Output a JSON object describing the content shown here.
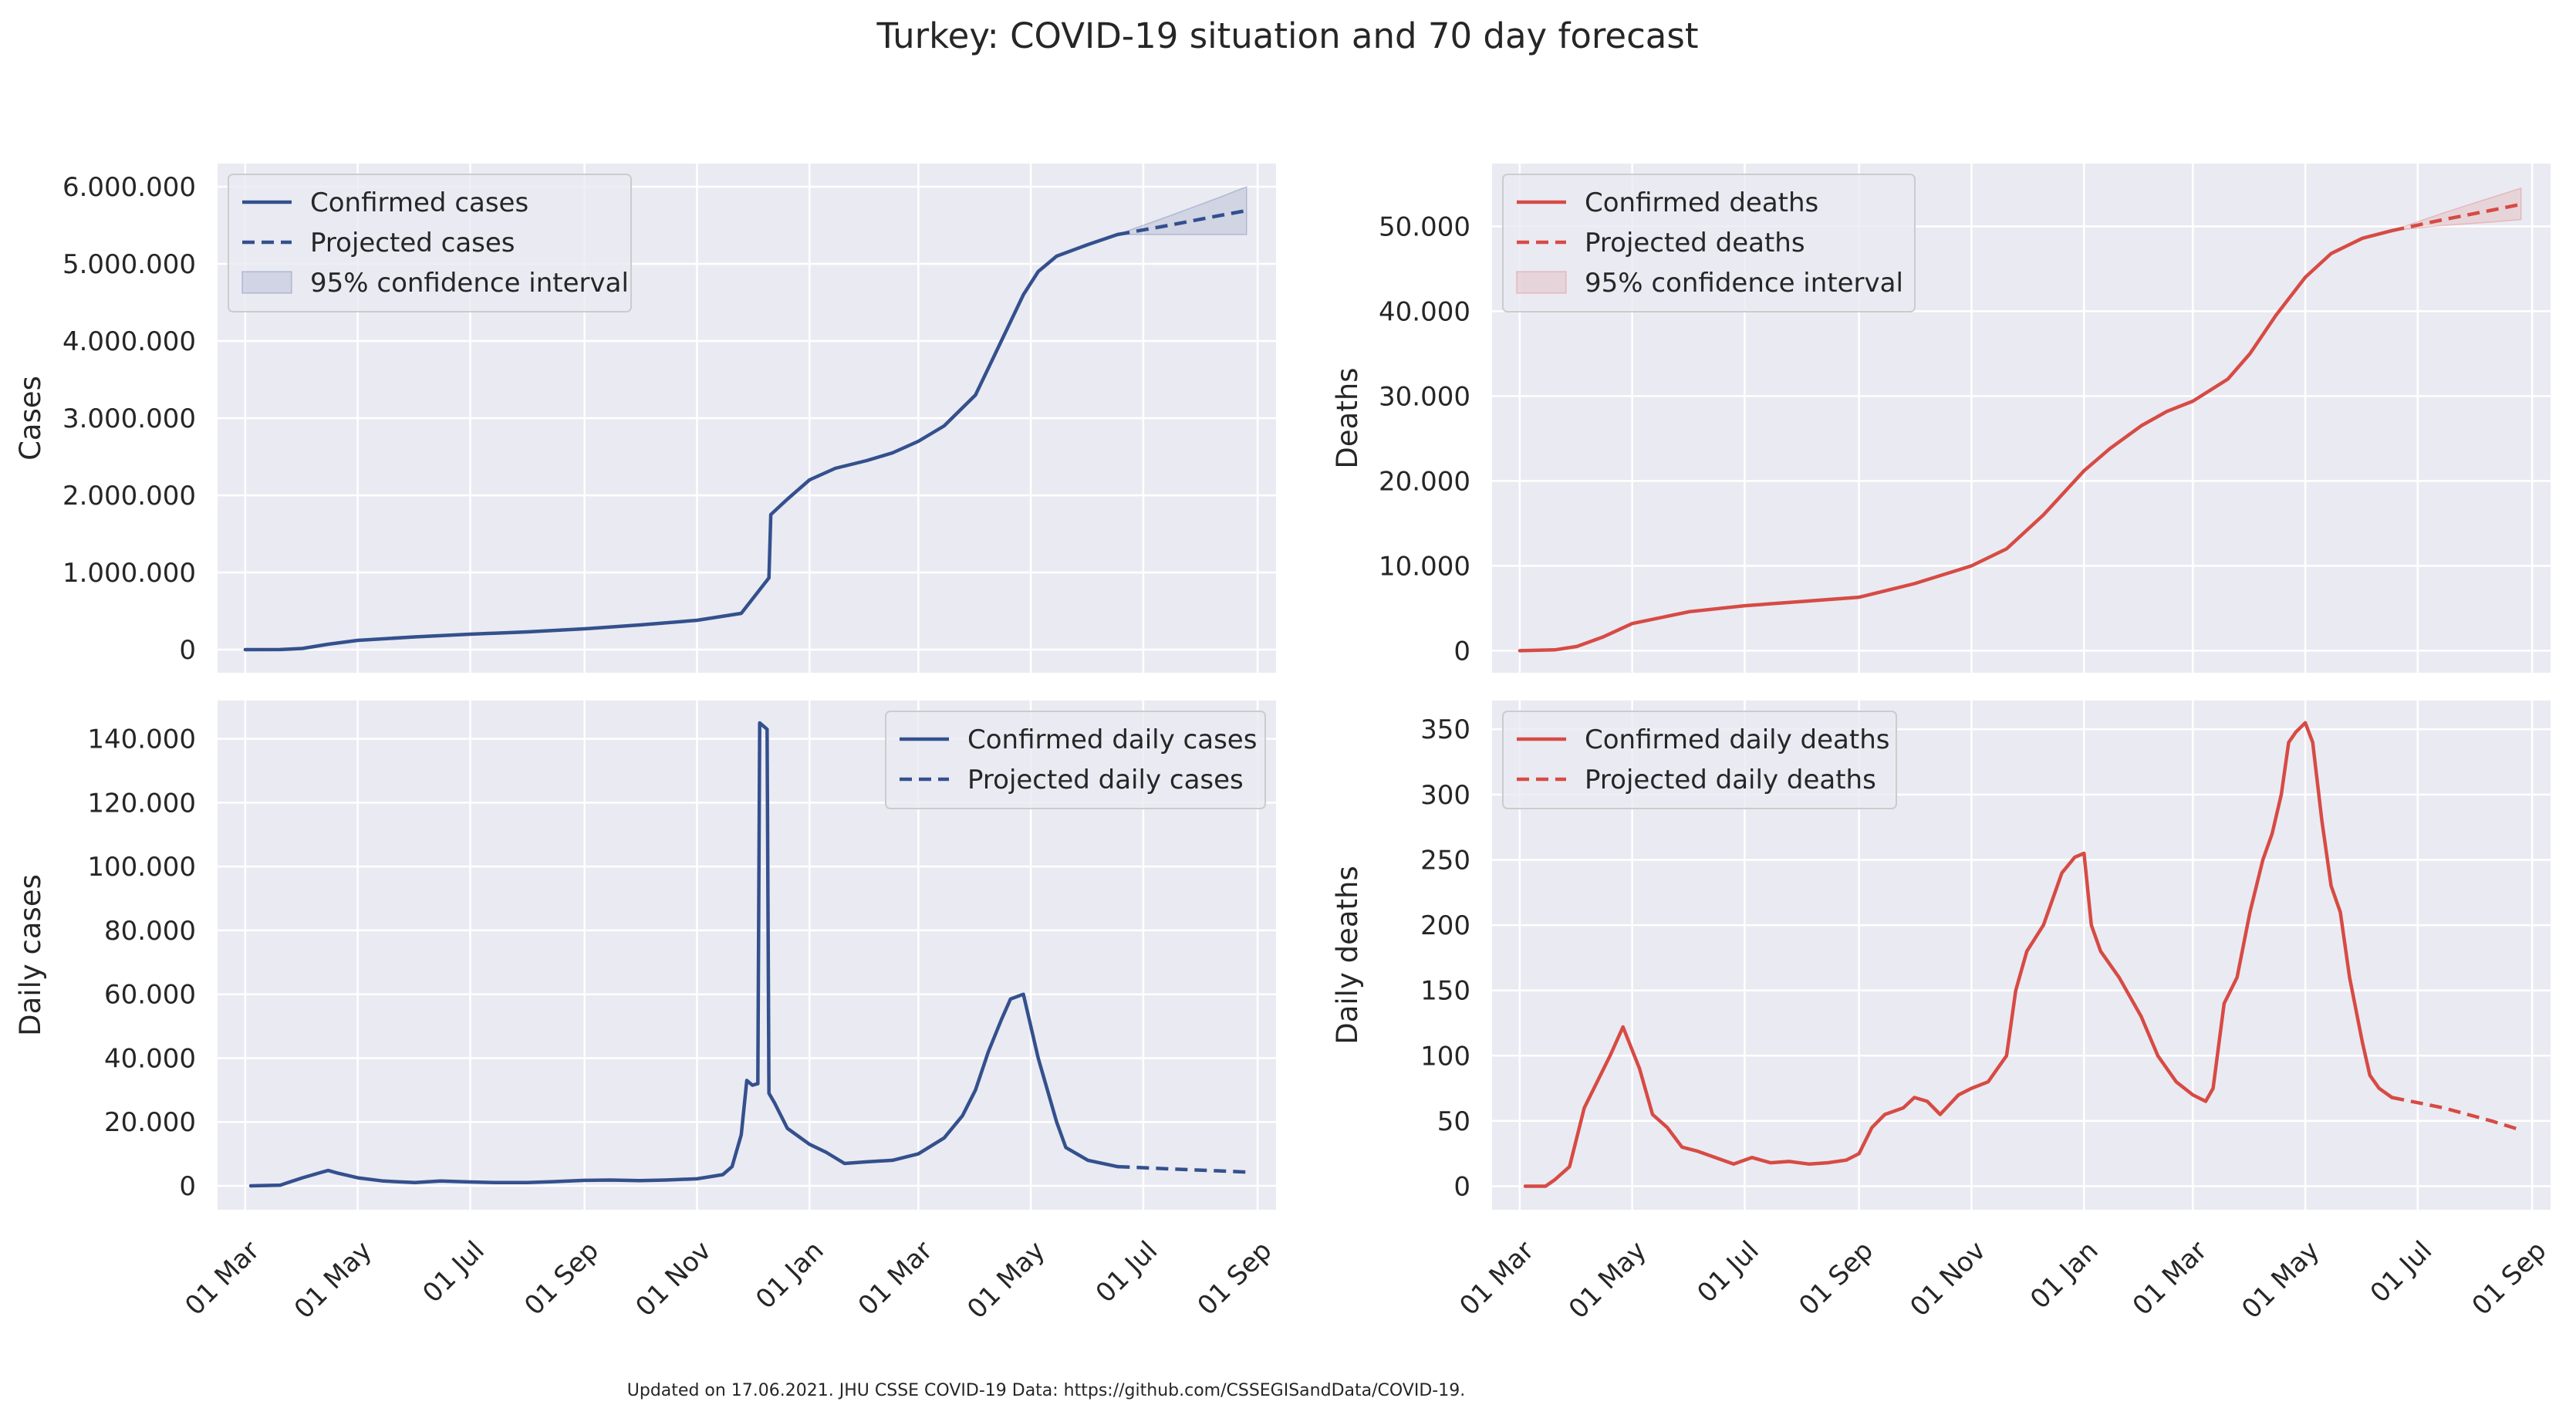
{
  "figure": {
    "title": "Turkey: COVID-19 situation and 70 day forecast",
    "footnote": "Updated on 17.06.2021. JHU CSSE COVID-19 Data: https://github.com/CSSEGISandData/COVID-19."
  },
  "colors": {
    "cases": "#34508d",
    "deaths": "#d64b44",
    "panel_bg": "#eaeaf2",
    "grid": "#ffffff"
  },
  "x_axis": {
    "type": "date",
    "range": [
      "2020-02-15",
      "2021-09-11"
    ],
    "ticks": [
      "2020-03-01",
      "2020-05-01",
      "2020-07-01",
      "2020-09-01",
      "2020-11-01",
      "2021-01-01",
      "2021-03-01",
      "2021-05-01",
      "2021-07-01",
      "2021-09-01"
    ],
    "tick_labels": [
      "01 Mar",
      "01 May",
      "01 Jul",
      "01 Sep",
      "01 Nov",
      "01 Jan",
      "01 Mar",
      "01 May",
      "01 Jul",
      "01 Sep"
    ]
  },
  "chart_data": [
    {
      "type": "line",
      "ylabel": "Cases",
      "ylim": [
        -300000,
        6300000
      ],
      "yticks": [
        0,
        1000000,
        2000000,
        3000000,
        4000000,
        5000000,
        6000000
      ],
      "ytick_labels": [
        "0",
        "1.000.000",
        "2.000.000",
        "3.000.000",
        "4.000.000",
        "5.000.000",
        "6.000.000"
      ],
      "legend_position": "top-left",
      "legend": [
        "Confirmed cases",
        "Projected cases",
        "95% confidence interval"
      ],
      "series": [
        {
          "name": "Confirmed cases",
          "style": "solid",
          "x": [
            "2020-03-01",
            "2020-03-20",
            "2020-04-01",
            "2020-04-15",
            "2020-05-01",
            "2020-06-01",
            "2020-07-01",
            "2020-08-01",
            "2020-09-01",
            "2020-10-01",
            "2020-11-01",
            "2020-11-25",
            "2020-12-10",
            "2020-12-11",
            "2020-12-20",
            "2021-01-01",
            "2021-01-15",
            "2021-02-01",
            "2021-02-15",
            "2021-03-01",
            "2021-03-15",
            "2021-04-01",
            "2021-04-15",
            "2021-04-27",
            "2021-05-05",
            "2021-05-15",
            "2021-06-01",
            "2021-06-17"
          ],
          "y": [
            0,
            600,
            15000,
            70000,
            120000,
            165000,
            200000,
            230000,
            270000,
            320000,
            380000,
            470000,
            930000,
            1750000,
            1950000,
            2200000,
            2350000,
            2450000,
            2550000,
            2700000,
            2900000,
            3300000,
            4000000,
            4600000,
            4900000,
            5100000,
            5250000,
            5380000
          ]
        },
        {
          "name": "Projected cases",
          "style": "dashed",
          "x": [
            "2021-06-17",
            "2021-07-15",
            "2021-08-10",
            "2021-08-26"
          ],
          "y": [
            5380000,
            5500000,
            5620000,
            5690000
          ]
        },
        {
          "name": "95% confidence interval",
          "style": "band",
          "x": [
            "2021-06-17",
            "2021-07-15",
            "2021-08-10",
            "2021-08-26"
          ],
          "y_low": [
            5380000,
            5380000,
            5380000,
            5380000
          ],
          "y_high": [
            5380000,
            5620000,
            5850000,
            6000000
          ]
        }
      ]
    },
    {
      "type": "line",
      "ylabel": "Deaths",
      "ylim": [
        -2600,
        57400
      ],
      "yticks": [
        0,
        10000,
        20000,
        30000,
        40000,
        50000
      ],
      "ytick_labels": [
        "0",
        "10.000",
        "20.000",
        "30.000",
        "40.000",
        "50.000"
      ],
      "legend_position": "top-left",
      "legend": [
        "Confirmed deaths",
        "Projected deaths",
        "95% confidence interval"
      ],
      "series": [
        {
          "name": "Confirmed deaths",
          "style": "solid",
          "x": [
            "2020-03-01",
            "2020-03-20",
            "2020-04-01",
            "2020-04-15",
            "2020-05-01",
            "2020-06-01",
            "2020-07-01",
            "2020-08-01",
            "2020-09-01",
            "2020-10-01",
            "2020-11-01",
            "2020-11-20",
            "2020-12-10",
            "2021-01-01",
            "2021-01-15",
            "2021-02-01",
            "2021-02-15",
            "2021-03-01",
            "2021-03-20",
            "2021-04-01",
            "2021-04-15",
            "2021-05-01",
            "2021-05-15",
            "2021-06-01",
            "2021-06-17"
          ],
          "y": [
            0,
            100,
            500,
            1600,
            3200,
            4600,
            5300,
            5800,
            6300,
            7900,
            10000,
            12000,
            16000,
            21200,
            23800,
            26500,
            28200,
            29400,
            32000,
            35000,
            39500,
            44000,
            46800,
            48600,
            49500
          ]
        },
        {
          "name": "Projected deaths",
          "style": "dashed",
          "x": [
            "2021-06-17",
            "2021-07-15",
            "2021-08-10",
            "2021-08-26"
          ],
          "y": [
            49500,
            50800,
            51900,
            52600
          ]
        },
        {
          "name": "95% confidence interval",
          "style": "band",
          "x": [
            "2021-06-17",
            "2021-07-15",
            "2021-08-10",
            "2021-08-26"
          ],
          "y_low": [
            49500,
            50100,
            50500,
            50800
          ],
          "y_high": [
            49500,
            51600,
            53400,
            54500
          ]
        }
      ]
    },
    {
      "type": "line",
      "ylabel": "Daily cases",
      "ylim": [
        -7500,
        152000
      ],
      "yticks": [
        0,
        20000,
        40000,
        60000,
        80000,
        100000,
        120000,
        140000
      ],
      "ytick_labels": [
        "0",
        "20.000",
        "40.000",
        "60.000",
        "80.000",
        "100.000",
        "120.000",
        "140.000"
      ],
      "legend_position": "top-right",
      "legend": [
        "Confirmed daily cases",
        "Projected daily cases"
      ],
      "series": [
        {
          "name": "Confirmed daily cases",
          "style": "solid",
          "x": [
            "2020-03-04",
            "2020-03-20",
            "2020-04-01",
            "2020-04-10",
            "2020-04-15",
            "2020-04-20",
            "2020-05-01",
            "2020-05-15",
            "2020-06-01",
            "2020-06-15",
            "2020-07-01",
            "2020-07-15",
            "2020-08-01",
            "2020-08-15",
            "2020-09-01",
            "2020-09-15",
            "2020-10-01",
            "2020-10-15",
            "2020-11-01",
            "2020-11-15",
            "2020-11-20",
            "2020-11-25",
            "2020-11-28",
            "2020-12-01",
            "2020-12-04",
            "2020-12-05",
            "2020-12-09",
            "2020-12-10",
            "2020-12-13",
            "2020-12-20",
            "2021-01-01",
            "2021-01-10",
            "2021-01-20",
            "2021-02-01",
            "2021-02-15",
            "2021-03-01",
            "2021-03-15",
            "2021-03-25",
            "2021-04-01",
            "2021-04-08",
            "2021-04-15",
            "2021-04-20",
            "2021-04-27",
            "2021-05-05",
            "2021-05-15",
            "2021-05-20",
            "2021-06-01",
            "2021-06-17"
          ],
          "y": [
            0,
            200,
            2500,
            4000,
            4800,
            4000,
            2500,
            1500,
            1000,
            1500,
            1200,
            1000,
            1000,
            1300,
            1700,
            1800,
            1600,
            1800,
            2200,
            3500,
            6000,
            16000,
            33000,
            31500,
            32000,
            145000,
            143000,
            29000,
            26000,
            18000,
            13000,
            10500,
            7000,
            7500,
            8000,
            10000,
            15000,
            22000,
            30000,
            42000,
            52000,
            58500,
            60000,
            40000,
            20000,
            12000,
            8000,
            6000
          ]
        },
        {
          "name": "Projected daily cases",
          "style": "dashed",
          "x": [
            "2021-06-17",
            "2021-07-15",
            "2021-08-10",
            "2021-08-26"
          ],
          "y": [
            6000,
            5300,
            4700,
            4300
          ]
        }
      ]
    },
    {
      "type": "line",
      "ylabel": "Daily deaths",
      "ylim": [
        -18,
        372
      ],
      "yticks": [
        0,
        50,
        100,
        150,
        200,
        250,
        300,
        350
      ],
      "ytick_labels": [
        "0",
        "50",
        "100",
        "150",
        "200",
        "250",
        "300",
        "350"
      ],
      "legend_position": "top-left",
      "legend": [
        "Confirmed daily deaths",
        "Projected daily deaths"
      ],
      "series": [
        {
          "name": "Confirmed daily deaths",
          "style": "solid",
          "x": [
            "2020-03-04",
            "2020-03-15",
            "2020-03-20",
            "2020-03-28",
            "2020-04-05",
            "2020-04-12",
            "2020-04-19",
            "2020-04-26",
            "2020-05-05",
            "2020-05-12",
            "2020-05-20",
            "2020-05-28",
            "2020-06-05",
            "2020-06-15",
            "2020-06-25",
            "2020-07-05",
            "2020-07-15",
            "2020-07-25",
            "2020-08-05",
            "2020-08-15",
            "2020-08-25",
            "2020-09-01",
            "2020-09-08",
            "2020-09-15",
            "2020-09-25",
            "2020-10-01",
            "2020-10-08",
            "2020-10-15",
            "2020-10-25",
            "2020-11-01",
            "2020-11-10",
            "2020-11-20",
            "2020-11-25",
            "2020-12-01",
            "2020-12-10",
            "2020-12-20",
            "2020-12-27",
            "2021-01-01",
            "2021-01-05",
            "2021-01-10",
            "2021-01-20",
            "2021-02-01",
            "2021-02-10",
            "2021-02-20",
            "2021-03-01",
            "2021-03-08",
            "2021-03-12",
            "2021-03-18",
            "2021-03-25",
            "2021-04-01",
            "2021-04-08",
            "2021-04-13",
            "2021-04-18",
            "2021-04-22",
            "2021-04-26",
            "2021-05-01",
            "2021-05-05",
            "2021-05-10",
            "2021-05-15",
            "2021-05-20",
            "2021-05-25",
            "2021-06-01",
            "2021-06-05",
            "2021-06-10",
            "2021-06-17"
          ],
          "y": [
            0,
            0,
            5,
            15,
            60,
            80,
            100,
            122,
            90,
            55,
            45,
            30,
            27,
            22,
            17,
            22,
            18,
            19,
            17,
            18,
            20,
            25,
            45,
            55,
            60,
            68,
            65,
            55,
            70,
            75,
            80,
            100,
            150,
            180,
            200,
            240,
            252,
            255,
            200,
            180,
            160,
            130,
            100,
            80,
            70,
            65,
            75,
            140,
            160,
            210,
            250,
            270,
            300,
            340,
            348,
            355,
            340,
            280,
            230,
            210,
            160,
            110,
            85,
            75,
            68
          ]
        },
        {
          "name": "Projected daily deaths",
          "style": "dashed",
          "x": [
            "2021-06-17",
            "2021-07-15",
            "2021-08-10",
            "2021-08-26"
          ],
          "y": [
            68,
            60,
            50,
            43
          ]
        }
      ]
    }
  ]
}
